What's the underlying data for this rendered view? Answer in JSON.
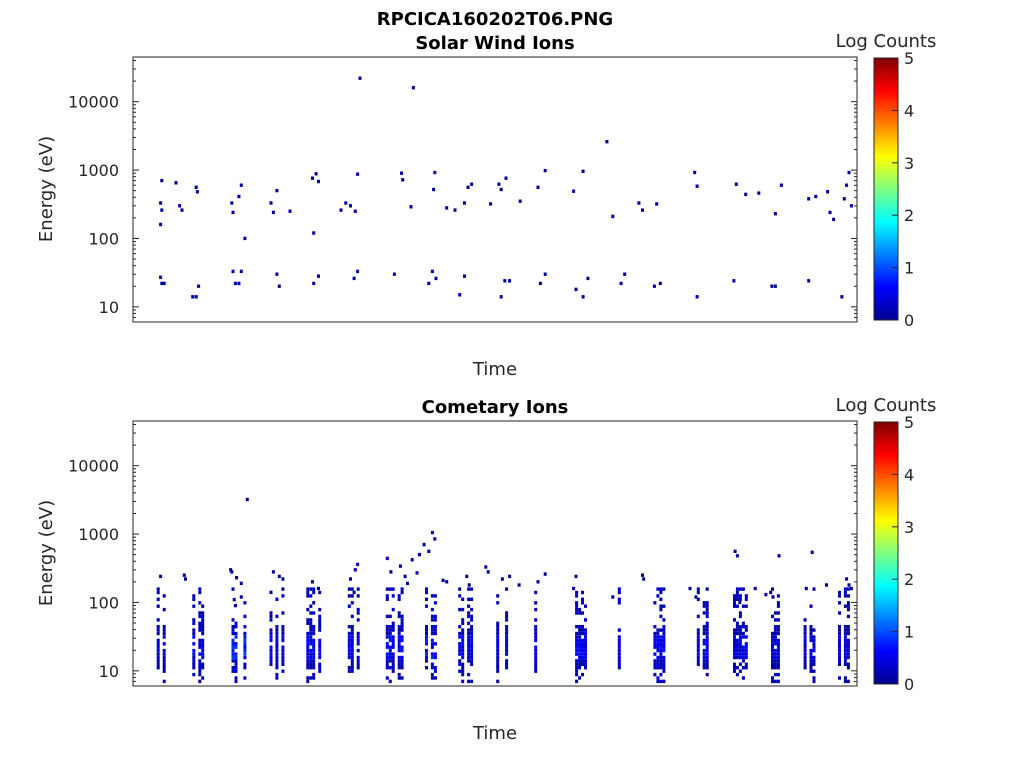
{
  "figure_title": "RPCICA160202T06.PNG",
  "colormap": [
    "#00008f",
    "#0000ff",
    "#0080ff",
    "#00ffff",
    "#80ff80",
    "#ffff00",
    "#ff8000",
    "#ff0000",
    "#800000"
  ],
  "chart_data": [
    {
      "type": "heatmap",
      "title": "Solar Wind Ions",
      "xlabel": "Time",
      "ylabel": "Energy (eV)",
      "yscale": "log",
      "xlim": [
        "06:00",
        "07:01"
      ],
      "ylim": [
        6,
        45000
      ],
      "xticks": [
        "06:00",
        "06:10",
        "06:20",
        "06:30",
        "06:40",
        "06:50",
        "07:00"
      ],
      "yticks": [
        {
          "value": 10,
          "label": "10"
        },
        {
          "value": 100,
          "label": "100"
        },
        {
          "value": 1000,
          "label": "1000"
        },
        {
          "value": 10000,
          "label": "10000"
        }
      ],
      "colorbar": {
        "label": "Log Counts",
        "min": 0,
        "max": 5,
        "ticks": [
          "0",
          "1",
          "2",
          "3",
          "4",
          "5"
        ]
      },
      "cell_minutes": 0.25,
      "cell_log_energy": 0.05,
      "cells": [
        [
          2.3,
          700,
          0.1
        ],
        [
          2.2,
          330,
          0.1
        ],
        [
          2.3,
          260,
          0.1
        ],
        [
          2.2,
          160,
          0.1
        ],
        [
          3.5,
          650,
          0.1
        ],
        [
          3.8,
          300,
          0.1
        ],
        [
          4.0,
          260,
          0.1
        ],
        [
          5.2,
          560,
          0.1
        ],
        [
          5.3,
          480,
          0.1
        ],
        [
          8.2,
          330,
          0.1
        ],
        [
          8.3,
          240,
          0.1
        ],
        [
          8.8,
          410,
          0.2
        ],
        [
          9.0,
          600,
          0.1
        ],
        [
          9.3,
          100,
          0.1
        ],
        [
          11.5,
          330,
          0.1
        ],
        [
          11.7,
          240,
          0.1
        ],
        [
          12.0,
          500,
          0.1
        ],
        [
          13.1,
          250,
          0.1
        ],
        [
          15.0,
          760,
          0.1
        ],
        [
          15.3,
          880,
          0.1
        ],
        [
          15.5,
          680,
          0.1
        ],
        [
          15.1,
          120,
          0.1
        ],
        [
          17.4,
          260,
          0.1
        ],
        [
          17.8,
          330,
          0.1
        ],
        [
          18.2,
          300,
          0.1
        ],
        [
          18.6,
          250,
          0.1
        ],
        [
          18.8,
          870,
          0.1
        ],
        [
          19.0,
          22000,
          0.1
        ],
        [
          22.5,
          900,
          0.1
        ],
        [
          22.6,
          720,
          0.1
        ],
        [
          23.3,
          290,
          0.1
        ],
        [
          23.5,
          16000,
          0.1
        ],
        [
          25.3,
          920,
          0.1
        ],
        [
          25.2,
          520,
          0.1
        ],
        [
          26.3,
          280,
          0.1
        ],
        [
          27.0,
          260,
          0.1
        ],
        [
          27.8,
          330,
          0.1
        ],
        [
          28.1,
          560,
          0.1
        ],
        [
          28.4,
          620,
          0.1
        ],
        [
          30.0,
          320,
          0.1
        ],
        [
          30.7,
          620,
          0.1
        ],
        [
          30.9,
          520,
          0.1
        ],
        [
          31.3,
          760,
          0.1
        ],
        [
          32.5,
          350,
          0.1
        ],
        [
          34.0,
          560,
          0.1
        ],
        [
          34.6,
          980,
          0.1
        ],
        [
          37.0,
          490,
          0.1
        ],
        [
          37.8,
          960,
          0.1
        ],
        [
          39.8,
          2600,
          0.1
        ],
        [
          40.3,
          210,
          0.1
        ],
        [
          42.5,
          330,
          0.1
        ],
        [
          42.8,
          260,
          0.1
        ],
        [
          44.0,
          320,
          0.1
        ],
        [
          47.2,
          920,
          0.1
        ],
        [
          47.4,
          580,
          0.1
        ],
        [
          50.7,
          620,
          0.1
        ],
        [
          51.5,
          440,
          0.1
        ],
        [
          52.6,
          460,
          0.1
        ],
        [
          54.0,
          230,
          0.1
        ],
        [
          54.5,
          600,
          0.1
        ],
        [
          56.8,
          380,
          0.1
        ],
        [
          57.4,
          410,
          0.1
        ],
        [
          58.4,
          480,
          0.1
        ],
        [
          58.6,
          240,
          0.1
        ],
        [
          58.9,
          190,
          0.1
        ],
        [
          59.8,
          380,
          0.1
        ],
        [
          60.0,
          600,
          0.1
        ],
        [
          60.2,
          920,
          0.1
        ],
        [
          60.4,
          300,
          0.1
        ],
        [
          2.2,
          27,
          0.1
        ],
        [
          2.3,
          22,
          0.1
        ],
        [
          2.5,
          22,
          0.1
        ],
        [
          4.9,
          14,
          0.1
        ],
        [
          5.2,
          14,
          0.1
        ],
        [
          5.4,
          20,
          0.1
        ],
        [
          8.3,
          33,
          0.1
        ],
        [
          8.5,
          22,
          0.1
        ],
        [
          8.8,
          22,
          0.1
        ],
        [
          9.0,
          33,
          0.1
        ],
        [
          12.0,
          30,
          0.1
        ],
        [
          12.2,
          20,
          0.1
        ],
        [
          15.1,
          22,
          0.1
        ],
        [
          15.5,
          28,
          0.1
        ],
        [
          18.5,
          26,
          0.1
        ],
        [
          18.8,
          33,
          0.1
        ],
        [
          21.9,
          30,
          0.1
        ],
        [
          24.8,
          22,
          0.1
        ],
        [
          25.1,
          33,
          0.1
        ],
        [
          25.4,
          26,
          0.1
        ],
        [
          27.4,
          15,
          0.1
        ],
        [
          27.8,
          28,
          0.1
        ],
        [
          30.9,
          14,
          0.1
        ],
        [
          31.2,
          24,
          0.1
        ],
        [
          31.6,
          24,
          0.1
        ],
        [
          34.2,
          22,
          0.1
        ],
        [
          34.6,
          30,
          0.1
        ],
        [
          37.2,
          18,
          0.1
        ],
        [
          37.8,
          14,
          0.1
        ],
        [
          38.2,
          26,
          0.1
        ],
        [
          41.0,
          22,
          0.1
        ],
        [
          41.3,
          30,
          0.1
        ],
        [
          43.8,
          20,
          0.1
        ],
        [
          44.3,
          22,
          0.1
        ],
        [
          47.4,
          14,
          0.1
        ],
        [
          50.5,
          24,
          0.1
        ],
        [
          53.7,
          20,
          0.1
        ],
        [
          54.0,
          20,
          0.1
        ],
        [
          56.8,
          24,
          0.1
        ],
        [
          59.6,
          14,
          0.1
        ]
      ]
    },
    {
      "type": "heatmap",
      "title": "Cometary Ions",
      "xlabel": "Time",
      "ylabel": "Energy (eV)",
      "yscale": "log",
      "xlim": [
        "06:00",
        "07:01"
      ],
      "ylim": [
        6,
        45000
      ],
      "xticks": [
        "06:00",
        "06:10",
        "06:20",
        "06:30",
        "06:40",
        "06:50",
        "07:00"
      ],
      "yticks": [
        {
          "value": 10,
          "label": "10"
        },
        {
          "value": 100,
          "label": "100"
        },
        {
          "value": 1000,
          "label": "1000"
        },
        {
          "value": 10000,
          "label": "10000"
        }
      ],
      "colorbar": {
        "label": "Log Counts",
        "min": 0,
        "max": 5,
        "ticks": [
          "0",
          "1",
          "2",
          "3",
          "4",
          "5"
        ]
      },
      "cell_minutes": 0.25,
      "cell_log_energy": 0.05,
      "bursts": [
        [
          2.0,
          0.8,
          0.45
        ],
        [
          5.0,
          1.0,
          0.65
        ],
        [
          8.3,
          1.5,
          0.95
        ],
        [
          11.5,
          1.2,
          0.7
        ],
        [
          14.6,
          1.2,
          0.7
        ],
        [
          18.1,
          1.0,
          0.6
        ],
        [
          21.3,
          1.4,
          0.75
        ],
        [
          24.6,
          1.3,
          0.85
        ],
        [
          27.4,
          1.2,
          0.7
        ],
        [
          30.6,
          0.9,
          0.5
        ],
        [
          33.8,
          1.1,
          0.6
        ],
        [
          37.0,
          1.3,
          0.75
        ],
        [
          40.6,
          1.0,
          0.55
        ],
        [
          43.6,
          1.3,
          0.75
        ],
        [
          47.0,
          1.4,
          0.6
        ],
        [
          50.3,
          1.4,
          0.6
        ],
        [
          53.5,
          0.9,
          0.55
        ],
        [
          56.5,
          1.1,
          0.55
        ],
        [
          59.4,
          1.1,
          0.5
        ]
      ],
      "cells": [
        [
          2.2,
          240,
          0.1
        ],
        [
          4.2,
          250,
          0.1
        ],
        [
          4.3,
          220,
          0.1
        ],
        [
          8.1,
          300,
          0.1
        ],
        [
          8.2,
          280,
          0.1
        ],
        [
          8.6,
          230,
          0.1
        ],
        [
          9.0,
          190,
          0.1
        ],
        [
          8.4,
          110,
          0.1
        ],
        [
          9.0,
          120,
          0.1
        ],
        [
          8.5,
          90,
          0.1
        ],
        [
          9.5,
          3200,
          0.1
        ],
        [
          11.7,
          280,
          0.1
        ],
        [
          12.2,
          240,
          0.1
        ],
        [
          12.5,
          220,
          0.1
        ],
        [
          11.5,
          140,
          0.1
        ],
        [
          15.0,
          200,
          0.1
        ],
        [
          15.5,
          160,
          0.1
        ],
        [
          18.2,
          220,
          0.1
        ],
        [
          18.6,
          300,
          0.1
        ],
        [
          18.8,
          360,
          0.1
        ],
        [
          18.5,
          140,
          0.1
        ],
        [
          21.3,
          440,
          0.1
        ],
        [
          21.6,
          280,
          0.1
        ],
        [
          22.4,
          340,
          0.1
        ],
        [
          22.8,
          240,
          0.1
        ],
        [
          23.0,
          190,
          0.1
        ],
        [
          23.4,
          420,
          0.1
        ],
        [
          23.8,
          270,
          0.1
        ],
        [
          24.0,
          500,
          0.1
        ],
        [
          24.4,
          700,
          0.1
        ],
        [
          25.1,
          1050,
          0.1
        ],
        [
          25.3,
          850,
          0.1
        ],
        [
          24.8,
          560,
          0.1
        ],
        [
          26.0,
          210,
          0.1
        ],
        [
          26.3,
          200,
          0.1
        ],
        [
          28.0,
          240,
          0.1
        ],
        [
          28.2,
          180,
          0.1
        ],
        [
          29.6,
          330,
          0.1
        ],
        [
          29.8,
          280,
          0.1
        ],
        [
          31.0,
          220,
          0.1
        ],
        [
          31.6,
          240,
          0.1
        ],
        [
          32.4,
          180,
          0.1
        ],
        [
          34.0,
          200,
          0.1
        ],
        [
          34.6,
          260,
          0.1
        ],
        [
          37.2,
          240,
          0.1
        ],
        [
          37.0,
          160,
          0.1
        ],
        [
          40.3,
          120,
          0.1
        ],
        [
          42.8,
          250,
          0.1
        ],
        [
          42.9,
          220,
          0.1
        ],
        [
          46.8,
          160,
          0.1
        ],
        [
          47.3,
          120,
          0.1
        ],
        [
          50.6,
          560,
          0.1
        ],
        [
          50.8,
          480,
          0.1
        ],
        [
          51.0,
          100,
          0.1
        ],
        [
          52.3,
          160,
          0.1
        ],
        [
          53.2,
          130,
          0.1
        ],
        [
          53.6,
          140,
          0.1
        ],
        [
          53.8,
          120,
          0.1
        ],
        [
          54.3,
          480,
          0.1
        ],
        [
          56.6,
          160,
          0.1
        ],
        [
          57.1,
          540,
          0.1
        ],
        [
          58.3,
          180,
          0.1
        ],
        [
          60.0,
          220,
          0.1
        ],
        [
          60.2,
          180,
          0.1
        ],
        [
          60.4,
          160,
          0.1
        ]
      ]
    }
  ]
}
